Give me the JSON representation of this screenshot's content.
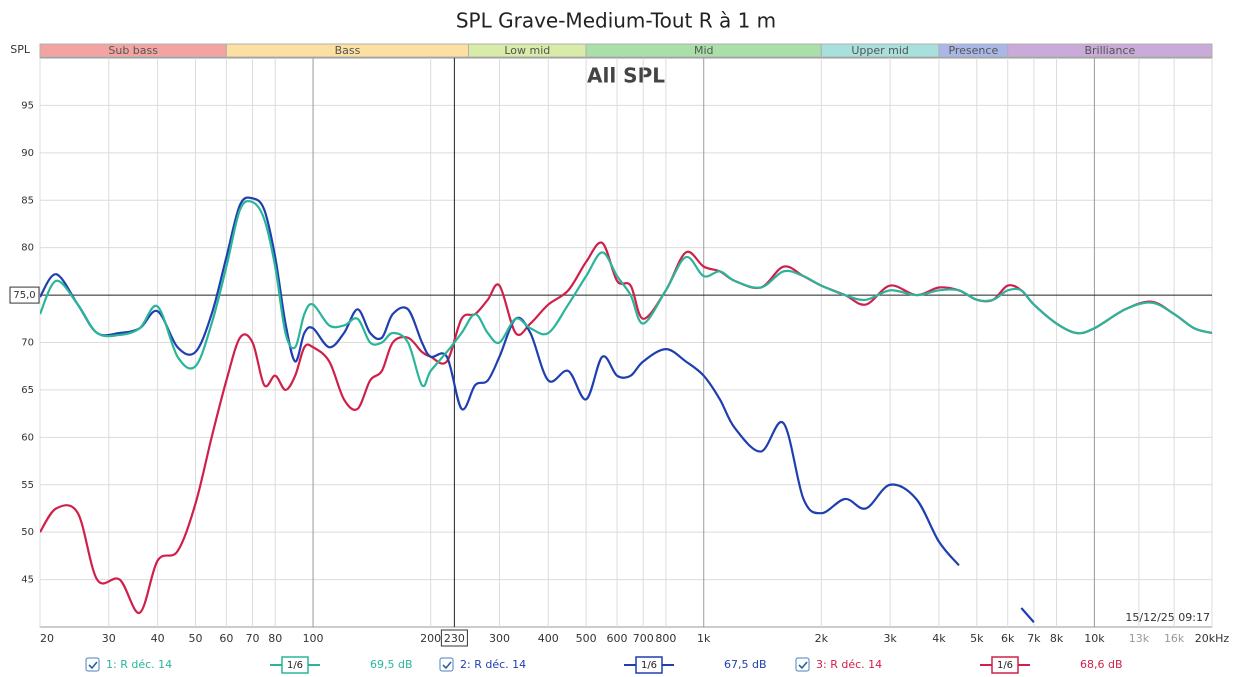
{
  "chart_data": {
    "type": "line",
    "title": "SPL Grave-Medium-Tout R à 1 m",
    "overlay_title": "All SPL",
    "band_axis_label": "SPL",
    "timestamp": "15/12/25 09:17",
    "log_x": true,
    "grid": true,
    "xlim": [
      20,
      20000
    ],
    "ylim": [
      40,
      100
    ],
    "yticks": [
      45,
      50,
      55,
      60,
      65,
      70,
      80,
      85,
      90,
      95
    ],
    "xticks": [
      20,
      30,
      40,
      50,
      60,
      70,
      80,
      100,
      200,
      300,
      400,
      500,
      600,
      700,
      800,
      {
        "value": 1000,
        "label": "1k"
      },
      {
        "value": 2000,
        "label": "2k"
      },
      {
        "value": 3000,
        "label": "3k"
      },
      {
        "value": 4000,
        "label": "4k"
      },
      {
        "value": 5000,
        "label": "5k"
      },
      {
        "value": 6000,
        "label": "6k"
      },
      {
        "value": 7000,
        "label": "7k"
      },
      {
        "value": 8000,
        "label": "8k"
      },
      {
        "value": 10000,
        "label": "10k"
      },
      {
        "value": 13000,
        "label": "13k",
        "color": "#999999"
      },
      {
        "value": 16000,
        "label": "16k",
        "color": "#999999"
      },
      {
        "value": 20000,
        "label": "20kHz"
      }
    ],
    "cursor": {
      "x": {
        "value": 230,
        "label": "230"
      },
      "y": {
        "value": 75,
        "label": "75,0"
      }
    },
    "bands": [
      {
        "name": "Sub bass",
        "from": 20,
        "to": 60,
        "color": "#f4a3a3"
      },
      {
        "name": "Bass",
        "from": 60,
        "to": 250,
        "color": "#fce0a2"
      },
      {
        "name": "Low mid",
        "from": 250,
        "to": 500,
        "color": "#d8eca8"
      },
      {
        "name": "Mid",
        "from": 500,
        "to": 2000,
        "color": "#a9e0a9"
      },
      {
        "name": "Upper mid",
        "from": 2000,
        "to": 4000,
        "color": "#a8e0dc"
      },
      {
        "name": "Presence",
        "from": 4000,
        "to": 6000,
        "color": "#a9b6e8"
      },
      {
        "name": "Brilliance",
        "from": 6000,
        "to": 20000,
        "color": "#c9aad8"
      }
    ],
    "x": [
      20,
      22,
      25,
      28,
      32,
      36,
      40,
      45,
      50,
      55,
      60,
      65,
      70,
      75,
      80,
      85,
      90,
      95,
      100,
      110,
      120,
      130,
      140,
      150,
      160,
      175,
      190,
      200,
      220,
      240,
      260,
      280,
      300,
      330,
      360,
      400,
      450,
      500,
      550,
      600,
      650,
      700,
      800,
      900,
      1000,
      1100,
      1200,
      1400,
      1600,
      1800,
      2000,
      2300,
      2600,
      3000,
      3500,
      4000,
      4500,
      5000,
      5500,
      6000,
      6500,
      7000,
      8000,
      9000,
      10000,
      12000,
      14000,
      16000,
      18000,
      20000
    ],
    "series": [
      {
        "name": "1: R déc. 14",
        "smoothing": "1/6",
        "legend_value": "69,5 dB",
        "color": "#2ab59a",
        "values": [
          73,
          76.5,
          74,
          71,
          70.8,
          71.5,
          73.8,
          68.5,
          67.5,
          72,
          78,
          84,
          84.8,
          83,
          78,
          71,
          69.5,
          73,
          74,
          71.8,
          71.8,
          72.5,
          70,
          70,
          71,
          70,
          65.5,
          67,
          69,
          71,
          73,
          71,
          70,
          72.5,
          71.5,
          71,
          74,
          77,
          79.5,
          77,
          75,
          72,
          75.5,
          79,
          77,
          77.5,
          76.5,
          75.8,
          77.5,
          77,
          76,
          75,
          74.5,
          75.5,
          75,
          75.5,
          75.5,
          74.5,
          74.5,
          75.5,
          75.5,
          74,
          72,
          71,
          71.5,
          73.5,
          74.2,
          73,
          71.5,
          71
        ]
      },
      {
        "name": "2: R déc. 14",
        "smoothing": "1/6",
        "legend_value": "67,5 dB",
        "color": "#1f3fb0",
        "values": [
          74.8,
          77.2,
          74,
          71,
          71,
          71.5,
          73.3,
          69.5,
          69,
          73,
          79,
          84.5,
          85.2,
          84,
          79,
          72,
          68,
          71,
          71.5,
          69.5,
          71,
          73.5,
          71,
          70.5,
          73,
          73.5,
          70,
          68.5,
          68.5,
          63,
          65.5,
          66,
          68.5,
          72.5,
          71,
          66,
          67,
          64,
          68.5,
          66.5,
          66.5,
          68,
          69.3,
          68,
          66.5,
          64,
          61,
          58.5,
          61.5,
          53.5,
          52,
          53.5,
          52.5,
          55,
          53.5,
          49,
          46.5,
          null,
          null,
          null,
          42,
          40.5,
          null,
          null,
          null,
          null,
          null,
          null,
          null,
          null
        ]
      },
      {
        "name": "3: R déc. 14",
        "smoothing": "1/6",
        "legend_value": "68,6 dB",
        "color": "#d0204a",
        "values": [
          50,
          52.5,
          52,
          45,
          45,
          41.5,
          47,
          48,
          53,
          60,
          66,
          70.5,
          70,
          65.5,
          66.5,
          65,
          66.5,
          69.5,
          69.5,
          68,
          64,
          63,
          66,
          67,
          70,
          70.5,
          69,
          68.5,
          68,
          72.5,
          73,
          74.5,
          76,
          71,
          72,
          74,
          75.5,
          78.5,
          80.5,
          76.5,
          76,
          72.5,
          75.5,
          79.5,
          78,
          77.5,
          76.5,
          75.8,
          78,
          77,
          76,
          75,
          74,
          76,
          75,
          75.8,
          75.5,
          74.5,
          74.5,
          76,
          75.5,
          74,
          72,
          71,
          71.5,
          73.5,
          74.3,
          73,
          71.5,
          71
        ]
      }
    ]
  }
}
